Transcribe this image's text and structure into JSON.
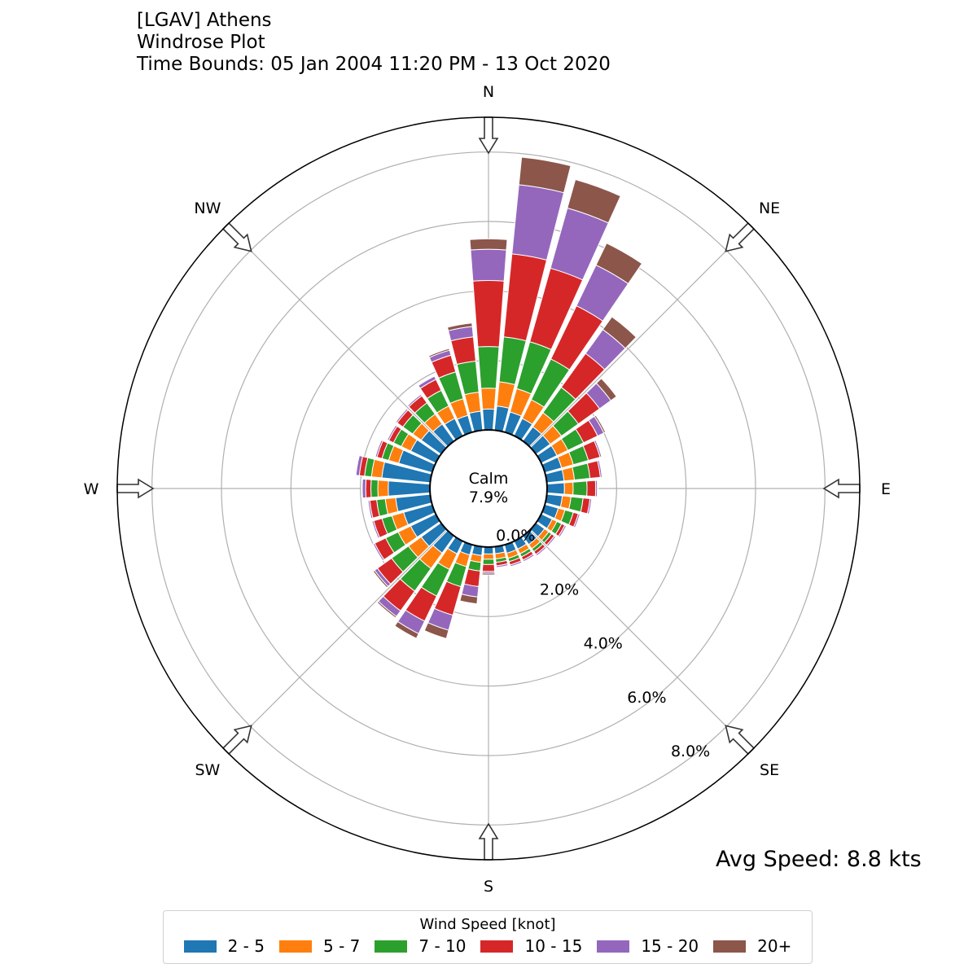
{
  "title": {
    "line1": "[LGAV] Athens",
    "line2": "Windrose Plot",
    "line3": "Time Bounds: 05 Jan 2004 11:20 PM - 13 Oct 2020"
  },
  "avg_speed": "Avg Speed: 8.8 kts",
  "calm": {
    "label": "Calm",
    "value": "7.9%"
  },
  "chart_data": {
    "type": "windrose",
    "title": "[LGAV] Athens Windrose Plot",
    "directions_deg": [
      0,
      10,
      20,
      30,
      40,
      50,
      60,
      70,
      80,
      90,
      100,
      110,
      120,
      130,
      140,
      150,
      160,
      170,
      180,
      190,
      200,
      210,
      220,
      230,
      240,
      250,
      260,
      270,
      280,
      290,
      300,
      310,
      320,
      330,
      340,
      350
    ],
    "compass_labels": [
      {
        "label": "N",
        "angle": 0
      },
      {
        "label": "NE",
        "angle": 45
      },
      {
        "label": "E",
        "angle": 90
      },
      {
        "label": "SE",
        "angle": 135
      },
      {
        "label": "S",
        "angle": 180
      },
      {
        "label": "SW",
        "angle": 225
      },
      {
        "label": "W",
        "angle": 270
      },
      {
        "label": "NW",
        "angle": 315
      }
    ],
    "radial_ticks": [
      "0.0%",
      "2.0%",
      "4.0%",
      "6.0%",
      "8.0%"
    ],
    "radial_max": 9.0,
    "legend_title": "Wind Speed [knot]",
    "series": [
      {
        "name": "2 - 5",
        "color": "#1f77b4",
        "values": [
          0.6,
          0.7,
          0.6,
          0.55,
          0.5,
          0.5,
          0.5,
          0.5,
          0.5,
          0.5,
          0.45,
          0.4,
          0.35,
          0.3,
          0.3,
          0.25,
          0.25,
          0.2,
          0.2,
          0.25,
          0.3,
          0.4,
          0.6,
          0.7,
          0.8,
          0.85,
          1.0,
          1.2,
          1.4,
          1.0,
          0.8,
          0.7,
          0.6,
          0.55,
          0.5,
          0.55
        ]
      },
      {
        "name": "5 - 7",
        "color": "#ff7f0e",
        "values": [
          0.6,
          0.7,
          0.7,
          0.6,
          0.5,
          0.4,
          0.35,
          0.35,
          0.3,
          0.25,
          0.25,
          0.2,
          0.15,
          0.15,
          0.15,
          0.15,
          0.15,
          0.15,
          0.15,
          0.2,
          0.35,
          0.5,
          0.55,
          0.45,
          0.4,
          0.35,
          0.3,
          0.3,
          0.3,
          0.3,
          0.3,
          0.3,
          0.35,
          0.4,
          0.5,
          0.55
        ]
      },
      {
        "name": "7 - 10",
        "color": "#2ca02c",
        "values": [
          1.2,
          1.3,
          1.4,
          1.3,
          0.9,
          0.6,
          0.5,
          0.45,
          0.45,
          0.4,
          0.35,
          0.25,
          0.15,
          0.1,
          0.1,
          0.1,
          0.1,
          0.1,
          0.15,
          0.25,
          0.6,
          0.85,
          0.8,
          0.6,
          0.4,
          0.3,
          0.25,
          0.2,
          0.2,
          0.2,
          0.25,
          0.35,
          0.4,
          0.5,
          0.8,
          0.9
        ]
      },
      {
        "name": "10 - 15",
        "color": "#d62728",
        "values": [
          1.9,
          2.4,
          2.2,
          1.7,
          1.2,
          0.75,
          0.45,
          0.35,
          0.3,
          0.25,
          0.2,
          0.15,
          0.1,
          0.1,
          0.1,
          0.1,
          0.1,
          0.1,
          0.2,
          0.45,
          0.85,
          0.8,
          0.7,
          0.5,
          0.35,
          0.25,
          0.2,
          0.15,
          0.15,
          0.15,
          0.15,
          0.2,
          0.25,
          0.35,
          0.5,
          0.7
        ]
      },
      {
        "name": "15 - 20",
        "color": "#9467bd",
        "values": [
          0.9,
          2.0,
          1.8,
          1.3,
          0.85,
          0.4,
          0.2,
          0.05,
          0.05,
          0.05,
          0.05,
          0.05,
          0.05,
          0.05,
          0.05,
          0.05,
          0.05,
          0.05,
          0.05,
          0.3,
          0.45,
          0.4,
          0.2,
          0.1,
          0.05,
          0.05,
          0.05,
          0.1,
          0.1,
          0.05,
          0.05,
          0.05,
          0.05,
          0.1,
          0.15,
          0.3
        ]
      },
      {
        "name": "20+",
        "color": "#8c564b",
        "values": [
          0.3,
          0.8,
          0.85,
          0.7,
          0.45,
          0.2,
          0.05,
          0.02,
          0.02,
          0.02,
          0.02,
          0.02,
          0.02,
          0.02,
          0.02,
          0.02,
          0.02,
          0.02,
          0.05,
          0.2,
          0.25,
          0.15,
          0.05,
          0.05,
          0.02,
          0.02,
          0.02,
          0.02,
          0.02,
          0.02,
          0.02,
          0.02,
          0.02,
          0.02,
          0.05,
          0.1
        ]
      }
    ]
  }
}
